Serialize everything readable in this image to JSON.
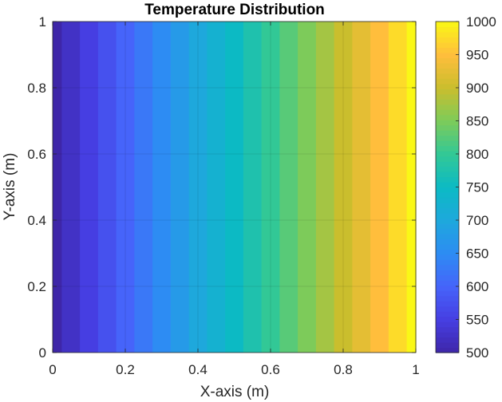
{
  "chart_data": {
    "type": "heatmap",
    "title": "Temperature Distribution",
    "xlabel": "X-axis (m)",
    "ylabel": "Y-axis (m)",
    "xlim": [
      0,
      1
    ],
    "ylim": [
      0,
      1
    ],
    "x_ticks": [
      0,
      0.2,
      0.4,
      0.6,
      0.8,
      1
    ],
    "x_tick_labels": [
      "0",
      "0.2",
      "0.4",
      "0.6",
      "0.8",
      "1"
    ],
    "y_ticks": [
      0,
      0.2,
      0.4,
      0.6,
      0.8,
      1
    ],
    "y_tick_labels": [
      "0",
      "0.2",
      "0.4",
      "0.6",
      "0.8",
      "1"
    ],
    "grid": true,
    "colormap": "parula",
    "colorbar": {
      "location": "right",
      "range": [
        500,
        1000
      ],
      "ticks": [
        500,
        550,
        600,
        650,
        700,
        750,
        800,
        850,
        900,
        950,
        1000
      ],
      "tick_labels": [
        "500",
        "550",
        "600",
        "650",
        "700",
        "750",
        "800",
        "850",
        "900",
        "950",
        "1000"
      ]
    },
    "x": [
      0,
      0.05,
      0.1,
      0.15,
      0.2,
      0.25,
      0.3,
      0.35,
      0.4,
      0.45,
      0.5,
      0.55,
      0.6,
      0.65,
      0.7,
      0.75,
      0.8,
      0.85,
      0.9,
      0.95,
      1
    ],
    "temperature_by_x": [
      500,
      525,
      550,
      575,
      600,
      625,
      650,
      675,
      700,
      725,
      750,
      775,
      800,
      825,
      850,
      875,
      900,
      925,
      950,
      975,
      1000
    ],
    "note_variation": "temperature varies along x only; constant along y"
  }
}
